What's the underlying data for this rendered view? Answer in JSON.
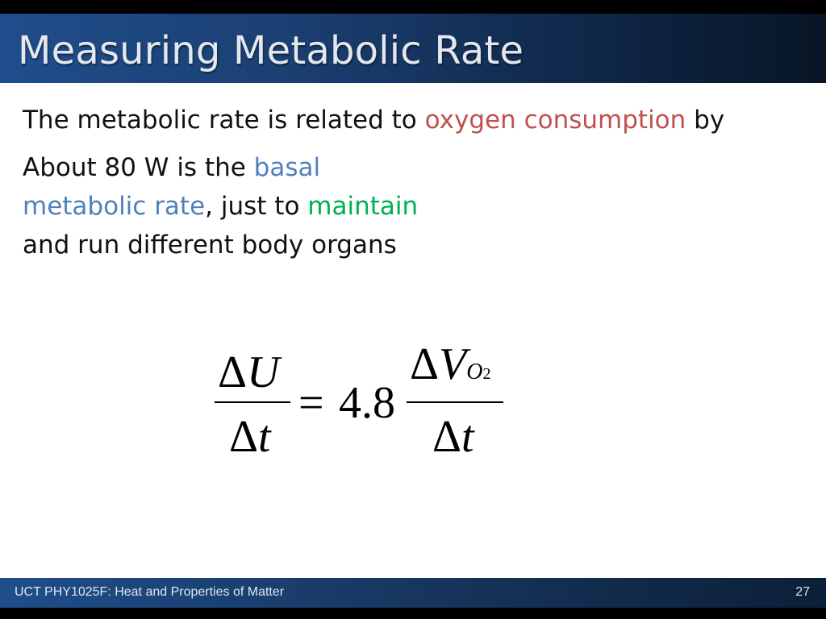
{
  "slide": {
    "title": "Measuring Metabolic Rate",
    "line1": {
      "pre": "The metabolic rate is related to ",
      "highlight": "oxygen consumption",
      "post": " by"
    },
    "line2": {
      "pre": "About 80 W is the ",
      "highlight": "basal"
    },
    "line3": {
      "highlight_blue": "metabolic rate",
      "mid": ", just to ",
      "highlight_green": "maintain"
    },
    "line4": "and run different body organs",
    "colors": {
      "red": "#c0504d",
      "blue": "#4f81bd",
      "green": "#00b050"
    }
  },
  "equation": {
    "lhs_num_delta": "Δ",
    "lhs_num_var": "U",
    "lhs_den_delta": "Δ",
    "lhs_den_var": "t",
    "equals": "=",
    "coefficient": "4.8",
    "rhs_num_delta": "Δ",
    "rhs_num_var": "V",
    "rhs_num_sub": "O",
    "rhs_num_subsub": "2",
    "rhs_den_delta": "Δ",
    "rhs_den_var": "t"
  },
  "footer": {
    "course": "UCT PHY1025F: Heat and Properties of Matter",
    "page": "27"
  }
}
